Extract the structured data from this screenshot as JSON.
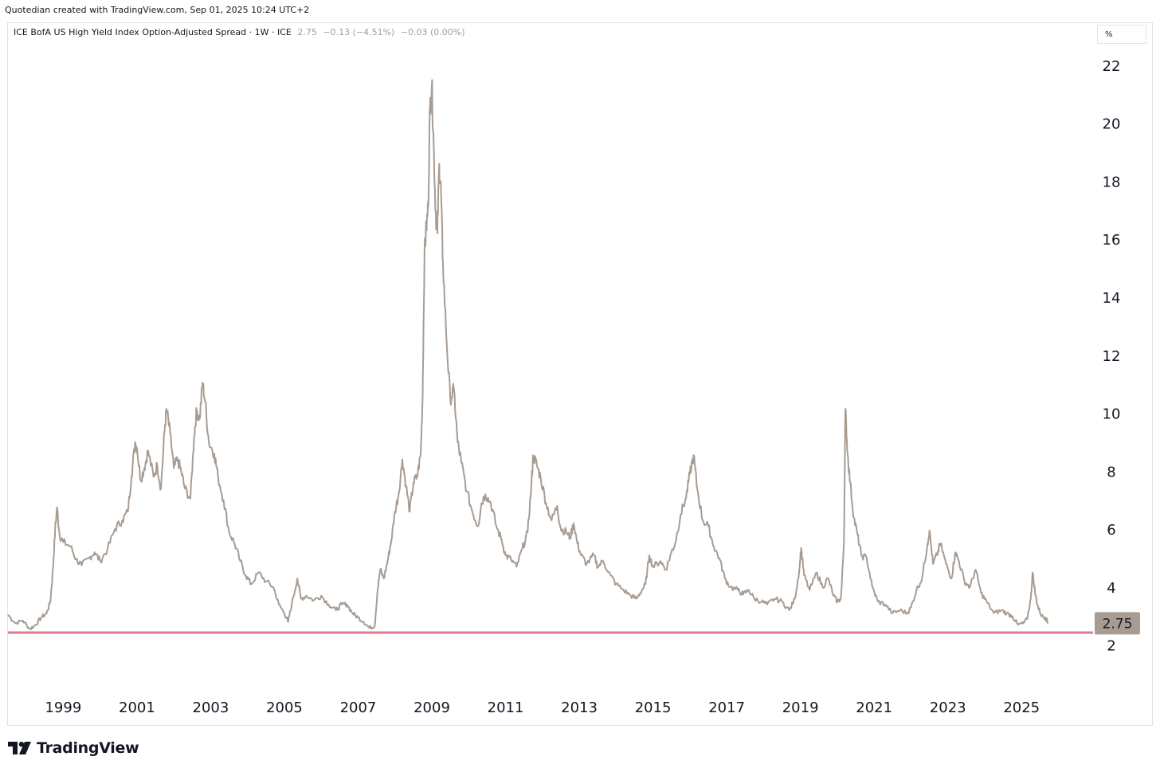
{
  "header": {
    "credit": "Quotedian created with TradingView.com, Sep 01, 2025 10:24 UTC+2"
  },
  "legend": {
    "symbol": "ICE BofA US High Yield Index Option-Adjusted Spread · 1W · ICE",
    "last": "2.75",
    "change": "−0.13 (−4.51%)",
    "change2": "−0.03 (0.00%)"
  },
  "unit_button": "%",
  "footer": {
    "brand": "TradingView"
  },
  "colors": {
    "line": "#a89c92",
    "hline": "#e27a93",
    "price_tag": "#a89c92"
  },
  "chart_data": {
    "type": "line",
    "title": "ICE BofA US High Yield Index Option-Adjusted Spread",
    "interval": "1W",
    "xlabel": "",
    "ylabel": "%",
    "x_ticks": [
      "1999",
      "2001",
      "2003",
      "2005",
      "2007",
      "2009",
      "2011",
      "2013",
      "2015",
      "2017",
      "2019",
      "2021",
      "2023",
      "2025"
    ],
    "y_ticks": [
      2,
      4,
      6,
      8,
      10,
      12,
      14,
      16,
      18,
      20,
      22
    ],
    "xlim": [
      1997.5,
      2026.4
    ],
    "ylim": [
      0.7,
      22.6
    ],
    "last_value": 2.75,
    "last_label": "2.75",
    "horizontal_line": 2.43,
    "grid": false,
    "series": [
      {
        "values": [
          [
            1997.5,
            3.05
          ],
          [
            1997.7,
            2.75
          ],
          [
            1997.9,
            2.85
          ],
          [
            1998.1,
            2.55
          ],
          [
            1998.25,
            2.7
          ],
          [
            1998.4,
            2.95
          ],
          [
            1998.55,
            3.1
          ],
          [
            1998.65,
            3.5
          ],
          [
            1998.72,
            4.6
          ],
          [
            1998.78,
            6.0
          ],
          [
            1998.83,
            6.75
          ],
          [
            1998.9,
            5.8
          ],
          [
            1999.0,
            5.55
          ],
          [
            1999.2,
            5.4
          ],
          [
            1999.35,
            4.95
          ],
          [
            1999.5,
            4.75
          ],
          [
            1999.7,
            5.0
          ],
          [
            1999.85,
            5.2
          ],
          [
            2000.0,
            4.9
          ],
          [
            2000.2,
            5.3
          ],
          [
            2000.4,
            6.0
          ],
          [
            2000.6,
            6.3
          ],
          [
            2000.75,
            6.6
          ],
          [
            2000.85,
            7.8
          ],
          [
            2000.95,
            9.0
          ],
          [
            2001.0,
            8.8
          ],
          [
            2001.1,
            7.7
          ],
          [
            2001.2,
            8.1
          ],
          [
            2001.3,
            8.7
          ],
          [
            2001.45,
            7.8
          ],
          [
            2001.55,
            8.2
          ],
          [
            2001.65,
            7.4
          ],
          [
            2001.75,
            9.4
          ],
          [
            2001.8,
            10.15
          ],
          [
            2001.9,
            9.3
          ],
          [
            2002.0,
            8.1
          ],
          [
            2002.1,
            8.4
          ],
          [
            2002.2,
            8.0
          ],
          [
            2002.3,
            7.4
          ],
          [
            2002.45,
            7.05
          ],
          [
            2002.55,
            9.2
          ],
          [
            2002.62,
            10.1
          ],
          [
            2002.7,
            9.8
          ],
          [
            2002.78,
            11.05
          ],
          [
            2002.85,
            10.4
          ],
          [
            2002.95,
            9.0
          ],
          [
            2003.1,
            8.6
          ],
          [
            2003.2,
            7.8
          ],
          [
            2003.35,
            7.0
          ],
          [
            2003.5,
            5.9
          ],
          [
            2003.65,
            5.5
          ],
          [
            2003.8,
            4.9
          ],
          [
            2003.95,
            4.4
          ],
          [
            2004.1,
            4.1
          ],
          [
            2004.3,
            4.5
          ],
          [
            2004.5,
            4.2
          ],
          [
            2004.7,
            4.0
          ],
          [
            2004.85,
            3.4
          ],
          [
            2005.0,
            3.1
          ],
          [
            2005.1,
            2.8
          ],
          [
            2005.2,
            3.4
          ],
          [
            2005.35,
            4.3
          ],
          [
            2005.45,
            3.6
          ],
          [
            2005.6,
            3.7
          ],
          [
            2005.8,
            3.55
          ],
          [
            2006.0,
            3.7
          ],
          [
            2006.2,
            3.4
          ],
          [
            2006.4,
            3.2
          ],
          [
            2006.55,
            3.4
          ],
          [
            2006.7,
            3.4
          ],
          [
            2006.85,
            3.1
          ],
          [
            2007.0,
            2.95
          ],
          [
            2007.15,
            2.8
          ],
          [
            2007.3,
            2.6
          ],
          [
            2007.45,
            2.65
          ],
          [
            2007.52,
            3.8
          ],
          [
            2007.6,
            4.6
          ],
          [
            2007.7,
            4.3
          ],
          [
            2007.8,
            4.9
          ],
          [
            2007.9,
            5.6
          ],
          [
            2008.0,
            6.6
          ],
          [
            2008.1,
            7.2
          ],
          [
            2008.2,
            8.4
          ],
          [
            2008.3,
            7.5
          ],
          [
            2008.4,
            6.6
          ],
          [
            2008.5,
            7.6
          ],
          [
            2008.6,
            7.8
          ],
          [
            2008.7,
            8.6
          ],
          [
            2008.75,
            10.6
          ],
          [
            2008.8,
            15.5
          ],
          [
            2008.85,
            16.4
          ],
          [
            2008.9,
            17.1
          ],
          [
            2008.95,
            20.6
          ],
          [
            2009.0,
            21.3
          ],
          [
            2009.05,
            19.3
          ],
          [
            2009.1,
            17.0
          ],
          [
            2009.15,
            16.2
          ],
          [
            2009.2,
            18.6
          ],
          [
            2009.25,
            17.6
          ],
          [
            2009.3,
            15.2
          ],
          [
            2009.4,
            12.5
          ],
          [
            2009.5,
            10.5
          ],
          [
            2009.6,
            10.8
          ],
          [
            2009.7,
            9.0
          ],
          [
            2009.8,
            8.3
          ],
          [
            2009.95,
            7.3
          ],
          [
            2010.1,
            6.6
          ],
          [
            2010.25,
            6.1
          ],
          [
            2010.35,
            6.9
          ],
          [
            2010.45,
            7.2
          ],
          [
            2010.6,
            6.9
          ],
          [
            2010.75,
            6.1
          ],
          [
            2010.9,
            5.6
          ],
          [
            2011.0,
            5.1
          ],
          [
            2011.15,
            4.95
          ],
          [
            2011.3,
            4.7
          ],
          [
            2011.45,
            5.3
          ],
          [
            2011.6,
            5.9
          ],
          [
            2011.7,
            7.5
          ],
          [
            2011.75,
            8.55
          ],
          [
            2011.85,
            8.2
          ],
          [
            2011.95,
            7.8
          ],
          [
            2012.1,
            6.9
          ],
          [
            2012.25,
            6.3
          ],
          [
            2012.4,
            6.8
          ],
          [
            2012.5,
            6.0
          ],
          [
            2012.65,
            5.9
          ],
          [
            2012.75,
            5.7
          ],
          [
            2012.85,
            6.2
          ],
          [
            2012.95,
            5.5
          ],
          [
            2013.05,
            5.1
          ],
          [
            2013.2,
            4.8
          ],
          [
            2013.4,
            5.1
          ],
          [
            2013.5,
            4.7
          ],
          [
            2013.65,
            4.9
          ],
          [
            2013.85,
            4.4
          ],
          [
            2014.0,
            4.1
          ],
          [
            2014.2,
            3.9
          ],
          [
            2014.4,
            3.7
          ],
          [
            2014.55,
            3.6
          ],
          [
            2014.7,
            3.9
          ],
          [
            2014.8,
            4.1
          ],
          [
            2014.9,
            5.1
          ],
          [
            2015.0,
            4.7
          ],
          [
            2015.2,
            4.9
          ],
          [
            2015.35,
            4.6
          ],
          [
            2015.5,
            5.2
          ],
          [
            2015.6,
            5.5
          ],
          [
            2015.75,
            6.5
          ],
          [
            2015.9,
            7.1
          ],
          [
            2016.0,
            7.9
          ],
          [
            2016.1,
            8.55
          ],
          [
            2016.2,
            7.4
          ],
          [
            2016.35,
            6.3
          ],
          [
            2016.5,
            6.1
          ],
          [
            2016.65,
            5.4
          ],
          [
            2016.8,
            5.0
          ],
          [
            2016.95,
            4.3
          ],
          [
            2017.1,
            4.0
          ],
          [
            2017.3,
            3.9
          ],
          [
            2017.45,
            3.75
          ],
          [
            2017.6,
            3.9
          ],
          [
            2017.75,
            3.6
          ],
          [
            2017.95,
            3.5
          ],
          [
            2018.1,
            3.4
          ],
          [
            2018.3,
            3.6
          ],
          [
            2018.5,
            3.5
          ],
          [
            2018.7,
            3.2
          ],
          [
            2018.85,
            3.6
          ],
          [
            2018.97,
            4.6
          ],
          [
            2019.02,
            5.35
          ],
          [
            2019.1,
            4.4
          ],
          [
            2019.25,
            3.9
          ],
          [
            2019.45,
            4.5
          ],
          [
            2019.6,
            4.0
          ],
          [
            2019.75,
            4.3
          ],
          [
            2019.9,
            3.7
          ],
          [
            2020.0,
            3.5
          ],
          [
            2020.1,
            3.6
          ],
          [
            2020.18,
            5.5
          ],
          [
            2020.22,
            10.15
          ],
          [
            2020.28,
            8.6
          ],
          [
            2020.35,
            7.6
          ],
          [
            2020.45,
            6.4
          ],
          [
            2020.55,
            5.8
          ],
          [
            2020.65,
            5.1
          ],
          [
            2020.8,
            5.0
          ],
          [
            2020.95,
            4.0
          ],
          [
            2021.1,
            3.5
          ],
          [
            2021.3,
            3.4
          ],
          [
            2021.5,
            3.1
          ],
          [
            2021.7,
            3.2
          ],
          [
            2021.9,
            3.1
          ],
          [
            2022.0,
            3.3
          ],
          [
            2022.15,
            3.9
          ],
          [
            2022.3,
            4.3
          ],
          [
            2022.45,
            5.5
          ],
          [
            2022.5,
            5.95
          ],
          [
            2022.6,
            4.8
          ],
          [
            2022.7,
            5.1
          ],
          [
            2022.8,
            5.5
          ],
          [
            2022.95,
            4.8
          ],
          [
            2023.1,
            4.3
          ],
          [
            2023.2,
            5.2
          ],
          [
            2023.3,
            4.9
          ],
          [
            2023.45,
            4.2
          ],
          [
            2023.6,
            4.0
          ],
          [
            2023.75,
            4.6
          ],
          [
            2023.9,
            3.8
          ],
          [
            2024.05,
            3.5
          ],
          [
            2024.25,
            3.1
          ],
          [
            2024.45,
            3.2
          ],
          [
            2024.6,
            3.1
          ],
          [
            2024.75,
            3.0
          ],
          [
            2024.9,
            2.7
          ],
          [
            2025.05,
            2.75
          ],
          [
            2025.15,
            2.9
          ],
          [
            2025.25,
            3.6
          ],
          [
            2025.3,
            4.5
          ],
          [
            2025.38,
            3.7
          ],
          [
            2025.45,
            3.3
          ],
          [
            2025.55,
            3.0
          ],
          [
            2025.65,
            2.95
          ],
          [
            2025.72,
            2.75
          ]
        ]
      }
    ]
  }
}
